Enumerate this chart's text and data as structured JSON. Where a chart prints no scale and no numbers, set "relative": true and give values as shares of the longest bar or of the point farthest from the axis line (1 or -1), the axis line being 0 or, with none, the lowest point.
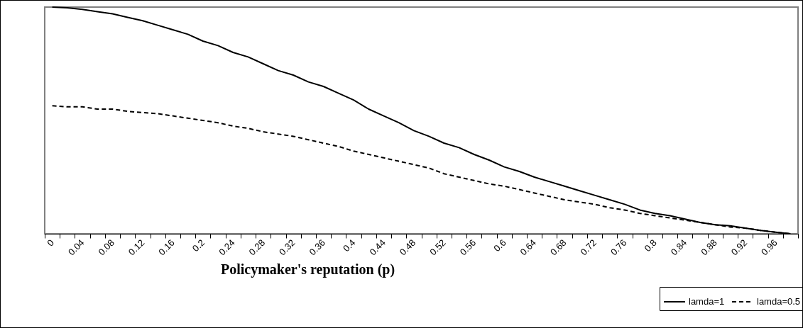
{
  "chart_data": {
    "type": "line",
    "xlabel": "Policymaker's reputation (p)",
    "relative": true,
    "legend": "bottom right",
    "categories": [
      "0",
      null,
      "0.04",
      null,
      "0.08",
      null,
      "0.12",
      null,
      "0.16",
      null,
      "0.2",
      null,
      "0.24",
      null,
      "0.28",
      null,
      "0.32",
      null,
      "0.36",
      null,
      "0.4",
      null,
      "0.44",
      null,
      "0.48",
      null,
      "0.52",
      null,
      "0.56",
      null,
      "0.6",
      null,
      "0.64",
      null,
      "0.68",
      null,
      "0.72",
      null,
      "0.76",
      null,
      "0.8",
      null,
      "0.84",
      null,
      "0.88",
      null,
      "0.92",
      null,
      "0.96",
      null
    ],
    "series": [
      {
        "name": "lamda=1",
        "color": "#000000",
        "line_style": "solid",
        "values": [
          1.0,
          0.997,
          0.99,
          0.98,
          0.97,
          0.955,
          0.94,
          0.92,
          0.9,
          0.88,
          0.85,
          0.83,
          0.8,
          0.78,
          0.75,
          0.72,
          0.7,
          0.67,
          0.65,
          0.62,
          0.59,
          0.55,
          0.52,
          0.49,
          0.455,
          0.43,
          0.4,
          0.38,
          0.35,
          0.325,
          0.295,
          0.275,
          0.25,
          0.23,
          0.21,
          0.19,
          0.17,
          0.15,
          0.13,
          0.105,
          0.09,
          0.08,
          0.065,
          0.05,
          0.04,
          0.035,
          0.025,
          0.015,
          0.007,
          0
        ]
      },
      {
        "name": "lamda=0.5",
        "color": "#000000",
        "line_style": "dashed",
        "values": [
          0.565,
          0.56,
          0.56,
          0.55,
          0.55,
          0.54,
          0.535,
          0.53,
          0.52,
          0.51,
          0.5,
          0.49,
          0.475,
          0.465,
          0.45,
          0.44,
          0.43,
          0.415,
          0.4,
          0.385,
          0.365,
          0.35,
          0.335,
          0.32,
          0.305,
          0.29,
          0.265,
          0.25,
          0.235,
          0.22,
          0.21,
          0.195,
          0.18,
          0.165,
          0.15,
          0.14,
          0.13,
          0.115,
          0.105,
          0.09,
          0.08,
          0.07,
          0.06,
          0.05,
          0.04,
          0.03,
          0.025,
          0.015,
          0.007,
          0
        ]
      }
    ]
  }
}
